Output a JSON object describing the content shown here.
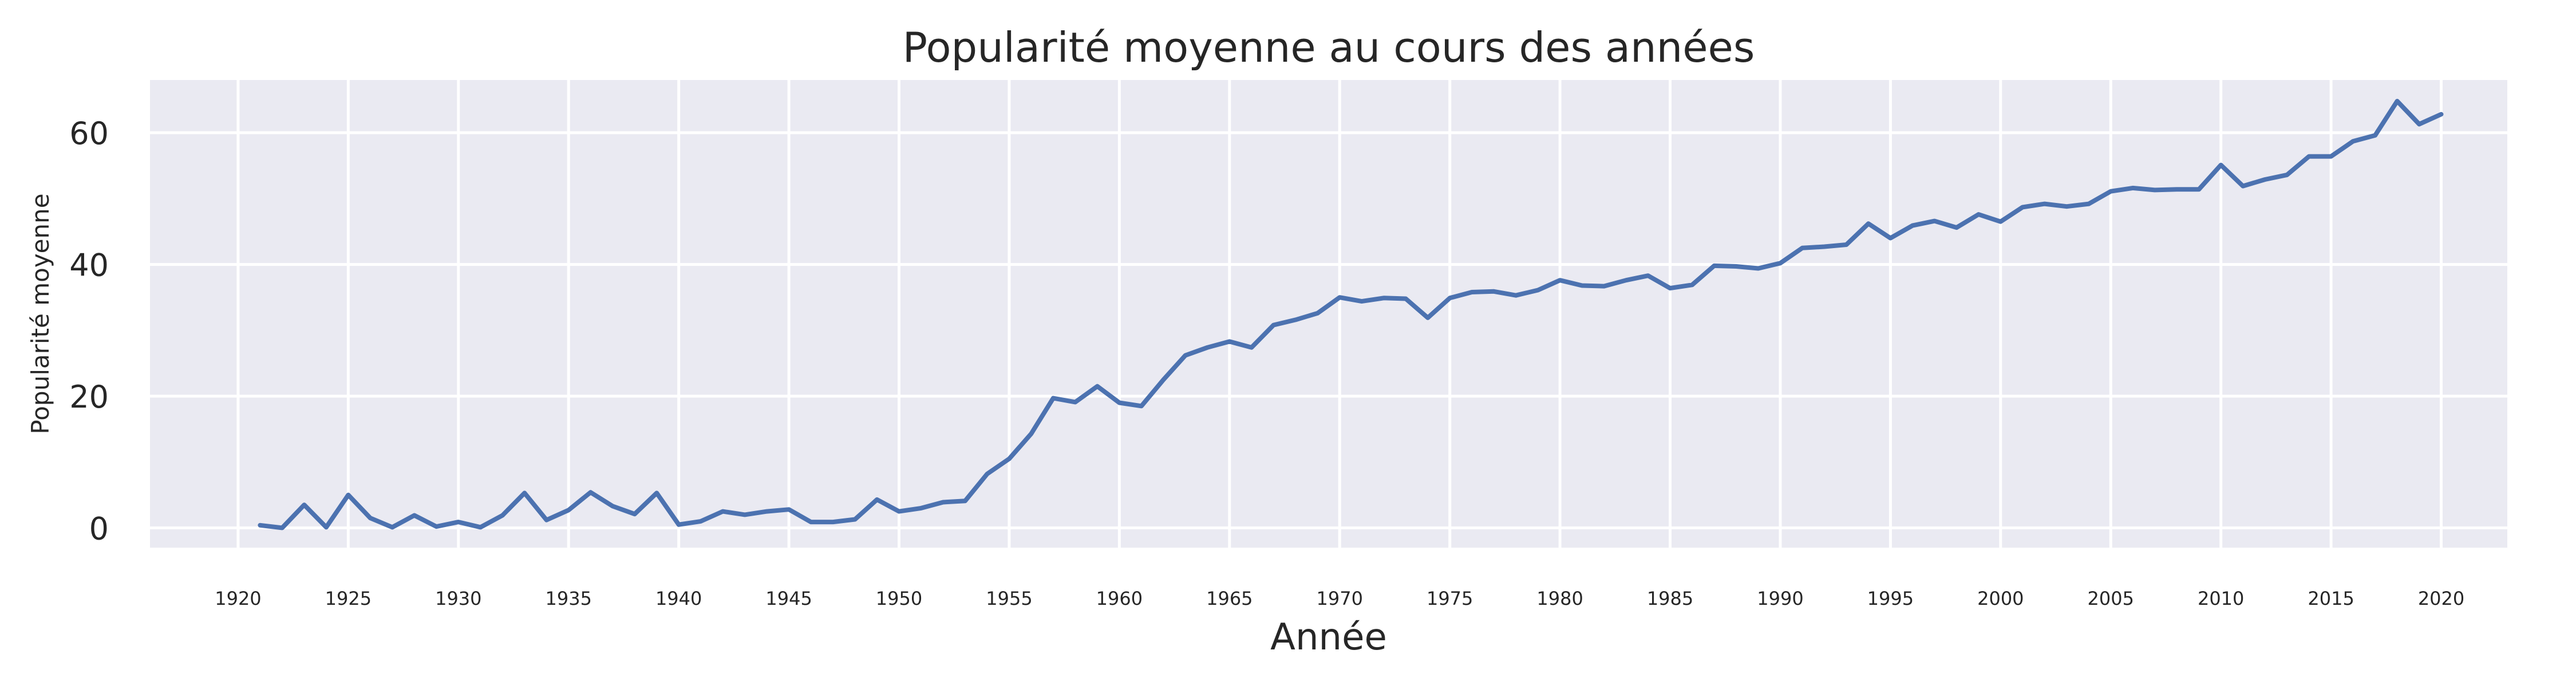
{
  "chart_data": {
    "type": "line",
    "title": "Popularité moyenne au cours des années",
    "xlabel": "Année",
    "ylabel": "Popularité moyenne",
    "xlim": [
      1916,
      2023
    ],
    "ylim": [
      -3,
      68
    ],
    "grid": true,
    "legend": "none",
    "colors": {
      "line": "#4c72b0",
      "plot_bg": "#eaeaf2",
      "grid": "#ffffff",
      "text": "#262626"
    },
    "x_ticks": [
      "1920",
      "1925",
      "1930",
      "1935",
      "1940",
      "1945",
      "1950",
      "1955",
      "1960",
      "1965",
      "1970",
      "1975",
      "1980",
      "1985",
      "1990",
      "1995",
      "2000",
      "2005",
      "2010",
      "2015",
      "2020"
    ],
    "y_ticks": [
      "0",
      "20",
      "40",
      "60"
    ],
    "x": [
      1921,
      1922,
      1923,
      1924,
      1925,
      1926,
      1927,
      1928,
      1929,
      1930,
      1931,
      1932,
      1933,
      1934,
      1935,
      1936,
      1937,
      1938,
      1939,
      1940,
      1941,
      1942,
      1943,
      1944,
      1945,
      1946,
      1947,
      1948,
      1949,
      1950,
      1951,
      1952,
      1953,
      1954,
      1955,
      1956,
      1957,
      1958,
      1959,
      1960,
      1961,
      1962,
      1963,
      1964,
      1965,
      1966,
      1967,
      1968,
      1969,
      1970,
      1971,
      1972,
      1973,
      1974,
      1975,
      1976,
      1977,
      1978,
      1979,
      1980,
      1981,
      1982,
      1983,
      1984,
      1985,
      1986,
      1987,
      1988,
      1989,
      1990,
      1991,
      1992,
      1993,
      1994,
      1995,
      1996,
      1997,
      1998,
      1999,
      2000,
      2001,
      2002,
      2003,
      2004,
      2005,
      2006,
      2007,
      2008,
      2009,
      2010,
      2011,
      2012,
      2013,
      2014,
      2015,
      2016,
      2017,
      2018,
      2019,
      2020
    ],
    "y": [
      0.4,
      0.0,
      3.5,
      0.1,
      5.0,
      1.5,
      0.1,
      1.9,
      0.2,
      0.9,
      0.1,
      1.9,
      5.3,
      1.2,
      2.7,
      5.4,
      3.3,
      2.1,
      5.3,
      0.5,
      1.0,
      2.5,
      2.0,
      2.5,
      2.8,
      0.9,
      0.9,
      1.3,
      4.3,
      2.5,
      3.0,
      3.9,
      4.1,
      8.2,
      10.5,
      14.3,
      19.7,
      19.1,
      21.5,
      19.0,
      18.5,
      22.5,
      26.2,
      27.4,
      28.3,
      27.4,
      30.8,
      31.6,
      32.6,
      35.0,
      34.4,
      34.9,
      34.8,
      31.9,
      34.9,
      35.8,
      35.9,
      35.3,
      36.1,
      37.6,
      36.8,
      36.7,
      37.6,
      38.3,
      36.4,
      36.9,
      39.8,
      39.7,
      39.4,
      40.2,
      42.5,
      42.7,
      43.0,
      46.2,
      44.0,
      45.9,
      46.6,
      45.6,
      47.6,
      46.5,
      48.7,
      49.2,
      48.8,
      49.2,
      51.1,
      51.6,
      51.3,
      51.4,
      51.4,
      55.1,
      51.9,
      52.9,
      53.6,
      56.4,
      56.4,
      58.7,
      59.6,
      64.8,
      61.3,
      62.8
    ],
    "series": [
      {
        "name": ""
      }
    ]
  }
}
